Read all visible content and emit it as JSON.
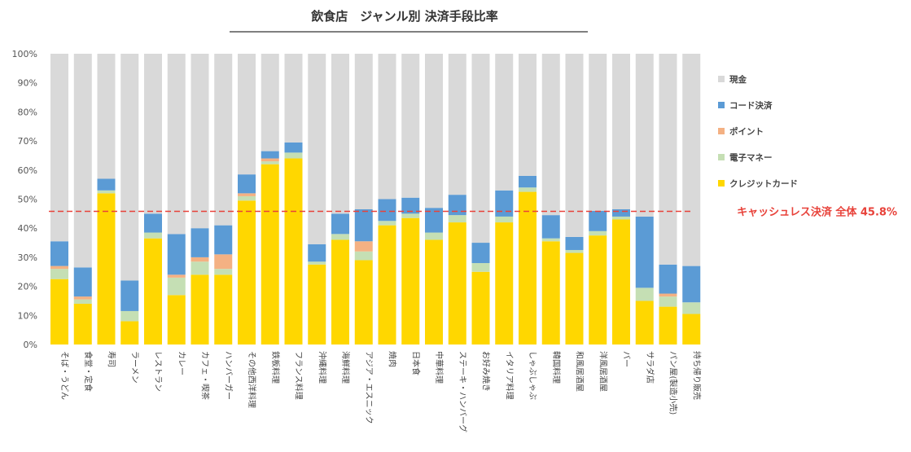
{
  "chart_data": {
    "type": "bar",
    "stacked": true,
    "title": "飲食店　ジャンル別 決済手段比率",
    "ylim": [
      0,
      100
    ],
    "yticks": [
      "0%",
      "10%",
      "20%",
      "30%",
      "40%",
      "50%",
      "60%",
      "70%",
      "80%",
      "90%",
      "100%"
    ],
    "legend_position": "right",
    "categories": [
      "そば・うどん",
      "食堂・定食",
      "寿司",
      "ラーメン",
      "レストラン",
      "カレー",
      "カフェ・喫茶",
      "ハンバーガー",
      "その他西洋料理",
      "鉄板料理",
      "フランス料理",
      "沖縄料理",
      "海鮮料理",
      "アジア・エスニック",
      "焼肉",
      "日本食",
      "中華料理",
      "ステーキ・ハンバーグ",
      "お好み焼き",
      "イタリア料理",
      "しゃぶしゃぶ",
      "韓国料理",
      "和風居酒屋",
      "洋風居酒屋",
      "バー",
      "サラダ店",
      "パン屋(製造小売)",
      "持ち帰り販売"
    ],
    "series": [
      {
        "name": "クレジットカード",
        "color": "#ffd700",
        "values": [
          22.5,
          14.0,
          52.0,
          8.0,
          36.5,
          17.0,
          24.0,
          24.0,
          49.5,
          62.0,
          64.0,
          27.5,
          36.0,
          29.0,
          41.0,
          43.5,
          36.0,
          42.0,
          25.0,
          42.0,
          52.5,
          35.5,
          31.5,
          37.5,
          43.0,
          15.0,
          13.0,
          10.5
        ]
      },
      {
        "name": "電子マネー",
        "color": "#c5dfb4",
        "values": [
          3.5,
          1.5,
          1.0,
          3.5,
          2.0,
          6.0,
          4.5,
          2.0,
          1.5,
          1.0,
          2.0,
          1.0,
          2.0,
          3.0,
          1.5,
          1.5,
          2.5,
          2.5,
          3.0,
          2.0,
          1.5,
          1.0,
          1.0,
          1.5,
          1.0,
          4.5,
          3.5,
          4.0
        ]
      },
      {
        "name": "ポイント",
        "color": "#f4b183",
        "values": [
          1.0,
          1.0,
          0.0,
          0.0,
          0.0,
          1.0,
          1.5,
          5.0,
          1.0,
          1.0,
          0.0,
          0.0,
          0.0,
          3.5,
          0.0,
          0.0,
          0.0,
          0.0,
          0.0,
          0.0,
          0.0,
          0.0,
          0.0,
          0.0,
          0.0,
          0.0,
          1.0,
          0.0
        ]
      },
      {
        "name": "コード決済",
        "color": "#5b9bd5",
        "values": [
          8.5,
          10.0,
          4.0,
          10.5,
          6.5,
          14.0,
          10.0,
          10.0,
          6.5,
          2.5,
          3.5,
          6.0,
          7.0,
          11.0,
          7.5,
          5.5,
          8.5,
          7.0,
          7.0,
          9.0,
          4.0,
          8.0,
          4.5,
          7.0,
          2.5,
          24.5,
          10.0,
          12.5
        ]
      },
      {
        "name": "現金",
        "color": "#d9d9d9",
        "values": [
          64.5,
          73.5,
          43.0,
          78.0,
          55.0,
          62.0,
          60.0,
          59.0,
          41.5,
          33.5,
          30.5,
          65.5,
          55.0,
          53.5,
          50.0,
          49.5,
          53.0,
          48.5,
          65.0,
          47.0,
          42.0,
          55.5,
          63.0,
          54.0,
          53.5,
          56.0,
          72.5,
          73.0
        ]
      }
    ],
    "legend_order": [
      "現金",
      "コード決済",
      "ポイント",
      "電子マネー",
      "クレジットカード"
    ],
    "reference_line": {
      "value": 45.8,
      "label": "キャッシュレス決済 全体 45.8%",
      "color": "#e8423a"
    }
  }
}
